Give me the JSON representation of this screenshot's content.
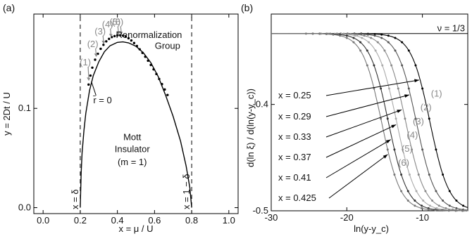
{
  "chart_data": [
    {
      "type": "line",
      "panel_label": "(a)",
      "xlabel": "x = μ / U",
      "ylabel": "y = 2Dt / U",
      "xlim": [
        -0.05,
        1.05
      ],
      "ylim": [
        -0.006,
        0.195
      ],
      "xticks": [
        "0.0",
        "0.2",
        "0.4",
        "0.6",
        "0.8",
        "1.0"
      ],
      "xtick_values": [
        0,
        0.2,
        0.4,
        0.6,
        0.8,
        1.0
      ],
      "yticks": [
        "0.0",
        "0.1"
      ],
      "ytick_values": [
        0,
        0.1
      ],
      "series": [
        {
          "name": "r̄ = 0",
          "style": "solid",
          "color": "#000000",
          "x": [
            0.2,
            0.205,
            0.21,
            0.22,
            0.23,
            0.25,
            0.27,
            0.3,
            0.33,
            0.36,
            0.4,
            0.43,
            0.46,
            0.5,
            0.54,
            0.58,
            0.62,
            0.66,
            0.7,
            0.74,
            0.77,
            0.79,
            0.795,
            0.8
          ],
          "y": [
            0.0,
            0.035,
            0.055,
            0.078,
            0.095,
            0.118,
            0.133,
            0.147,
            0.157,
            0.163,
            0.1665,
            0.167,
            0.166,
            0.1625,
            0.156,
            0.146,
            0.132,
            0.113,
            0.092,
            0.067,
            0.042,
            0.02,
            0.01,
            0.0
          ]
        },
        {
          "name": "Renormalization Group",
          "style": "dots",
          "color": "#000000",
          "x": [
            0.245,
            0.255,
            0.265,
            0.28,
            0.295,
            0.31,
            0.325,
            0.34,
            0.355,
            0.37,
            0.385,
            0.4,
            0.415,
            0.43,
            0.445,
            0.46,
            0.475,
            0.49,
            0.505,
            0.52,
            0.535,
            0.55,
            0.565,
            0.58,
            0.595,
            0.61,
            0.625,
            0.64,
            0.655,
            0.67
          ],
          "y": [
            0.124,
            0.133,
            0.141,
            0.149,
            0.155,
            0.16,
            0.164,
            0.1675,
            0.17,
            0.1718,
            0.1728,
            0.1735,
            0.1736,
            0.1732,
            0.1722,
            0.1706,
            0.1684,
            0.1658,
            0.1628,
            0.1595,
            0.1559,
            0.152,
            0.148,
            0.1437,
            0.1393,
            0.1346,
            0.1296,
            0.1244,
            0.119,
            0.1135
          ]
        }
      ],
      "vlines": [
        {
          "x": 0.2,
          "label": "x = δ"
        },
        {
          "x": 0.8,
          "label": "x = 1 − δ"
        }
      ],
      "annotations": [
        {
          "text": "Renormalization",
          "x": 0.57,
          "y": 0.171
        },
        {
          "text": "Group",
          "x": 0.67,
          "y": 0.16
        },
        {
          "text": "r̄ = 0",
          "x": 0.32,
          "y": 0.105
        },
        {
          "text": "Mott",
          "x": 0.48,
          "y": 0.068
        },
        {
          "text": "Insulator",
          "x": 0.48,
          "y": 0.056
        },
        {
          "text": "(m = 1)",
          "x": 0.48,
          "y": 0.043
        }
      ],
      "numbered_markers": [
        {
          "label": "(1)",
          "x": 0.25,
          "y": 0.127
        },
        {
          "label": "(2)",
          "x": 0.29,
          "y": 0.151
        },
        {
          "label": "(3)",
          "x": 0.33,
          "y": 0.164
        },
        {
          "label": "(4)",
          "x": 0.37,
          "y": 0.171
        },
        {
          "label": "(5)",
          "x": 0.41,
          "y": 0.1735
        },
        {
          "label": "(6)",
          "x": 0.425,
          "y": 0.1735
        }
      ]
    },
    {
      "type": "line",
      "panel_label": "(b)",
      "xlabel": "ln(y-y_c)",
      "ylabel": "d(ln ξ) / d(ln(y-y_c))",
      "xlim": [
        -30,
        -4
      ],
      "ylim": [
        -0.5,
        -0.315
      ],
      "xticks": [
        "-30",
        "-20",
        "-10"
      ],
      "xtick_values": [
        -30,
        -20,
        -10
      ],
      "yticks": [
        "-0.4",
        "-0.5"
      ],
      "ytick_values": [
        -0.4,
        -0.5
      ],
      "hline": {
        "y": -0.3333,
        "label": "ν = 1/3"
      },
      "curve_params_note": "curves follow y = -1/3 - (1/6) / (1 + exp(-(x - center)/1.25))",
      "series": [
        {
          "name": "x = 0.25",
          "number": "(1)",
          "color": "#000000",
          "center": -9.0
        },
        {
          "name": "x = 0.29",
          "number": "(2)",
          "color": "#555555",
          "center": -10.8
        },
        {
          "name": "x = 0.33",
          "number": "(3)",
          "color": "#888888",
          "center": -12.2
        },
        {
          "name": "x = 0.37",
          "number": "(4)",
          "color": "#aaaaaa",
          "center": -13.4
        },
        {
          "name": "x = 0.41",
          "number": "(5)",
          "color": "#333333",
          "center": -14.5
        },
        {
          "name": "x = 0.425",
          "number": "(6)",
          "color": "#777777",
          "center": -15.4
        }
      ]
    }
  ]
}
